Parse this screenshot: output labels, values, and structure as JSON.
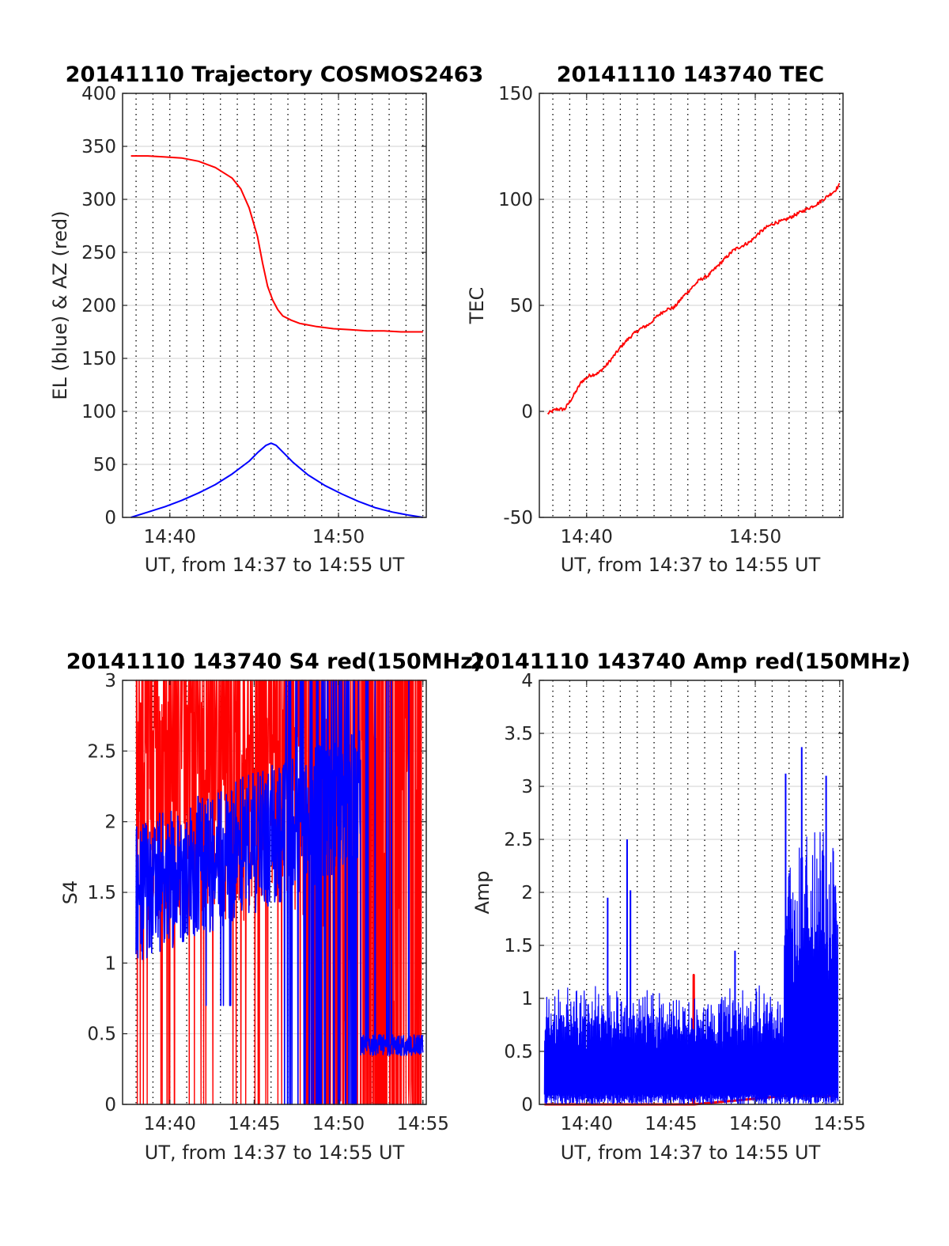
{
  "colors": {
    "el": "#0000ff",
    "az": "#ff0000",
    "tec": "#ff0000",
    "red_channel": "#ff0000",
    "blue_channel": "#0000ff",
    "grid": "#000000",
    "axes": "#262626"
  },
  "chart_data": [
    {
      "type": "line",
      "title": "20141110 Trajectory COSMOS2463",
      "xlabel": "UT, from 14:37 to 14:55 UT",
      "ylabel": "EL (blue) & AZ (red)",
      "xlim": [
        14.62,
        14.92
      ],
      "ylim": [
        0,
        400
      ],
      "xticks": [
        {
          "v": 14.6667,
          "label": "14:40"
        },
        {
          "v": 14.8333,
          "label": "14:50"
        }
      ],
      "yticks": [
        {
          "v": 0,
          "label": "0"
        },
        {
          "v": 50,
          "label": "50"
        },
        {
          "v": 100,
          "label": "100"
        },
        {
          "v": 150,
          "label": "150"
        },
        {
          "v": 200,
          "label": "200"
        },
        {
          "v": 250,
          "label": "250"
        },
        {
          "v": 300,
          "label": "300"
        },
        {
          "v": 350,
          "label": "350"
        },
        {
          "v": 400,
          "label": "400"
        }
      ],
      "grid": "vertical dotted every 1 minute, horizontal solid at y ticks",
      "series": [
        {
          "role": "EL",
          "color": "#0000ff",
          "x": [
            14.6283,
            14.645,
            14.6617,
            14.6783,
            14.695,
            14.7117,
            14.7283,
            14.745,
            14.7533,
            14.7617,
            14.7667,
            14.7717,
            14.78,
            14.7883,
            14.8033,
            14.82,
            14.8367,
            14.8533,
            14.87,
            14.8867,
            14.9033,
            14.9167
          ],
          "y": [
            0,
            5,
            10,
            16,
            23,
            31,
            41,
            53,
            61,
            68,
            70,
            68,
            60,
            52,
            40,
            30,
            22,
            15,
            9,
            5,
            2,
            0
          ]
        },
        {
          "role": "AZ",
          "color": "#ff0000",
          "x": [
            14.6283,
            14.645,
            14.6617,
            14.6783,
            14.695,
            14.7117,
            14.7283,
            14.7367,
            14.745,
            14.7533,
            14.7583,
            14.7633,
            14.7683,
            14.7733,
            14.7783,
            14.7867,
            14.795,
            14.8117,
            14.8283,
            14.845,
            14.8617,
            14.8783,
            14.895,
            14.9167
          ],
          "y": [
            341,
            341,
            340,
            339,
            336,
            330,
            320,
            310,
            292,
            265,
            240,
            218,
            205,
            196,
            190,
            186,
            183,
            180,
            178,
            177,
            176,
            176,
            175,
            175
          ]
        }
      ]
    },
    {
      "type": "line",
      "title": "20141110 143740 TEC",
      "xlabel": "UT, from 14:37 to 14:55 UT",
      "ylabel": "TEC",
      "xlim": [
        14.62,
        14.92
      ],
      "ylim": [
        -50,
        150
      ],
      "xticks": [
        {
          "v": 14.6667,
          "label": "14:40"
        },
        {
          "v": 14.8333,
          "label": "14:50"
        }
      ],
      "yticks": [
        {
          "v": -50,
          "label": "-50"
        },
        {
          "v": 0,
          "label": "0"
        },
        {
          "v": 50,
          "label": "50"
        },
        {
          "v": 100,
          "label": "100"
        },
        {
          "v": 150,
          "label": "150"
        }
      ],
      "grid": "vertical dotted every 1 minute, horizontal solid at y ticks",
      "series": [
        {
          "color": "#ff0000",
          "x": [
            14.6283,
            14.6367,
            14.645,
            14.6533,
            14.6617,
            14.67,
            14.6783,
            14.6867,
            14.695,
            14.7033,
            14.7117,
            14.72,
            14.7283,
            14.7367,
            14.745,
            14.7533,
            14.7617,
            14.77,
            14.7783,
            14.7867,
            14.795,
            14.8033,
            14.8117,
            14.82,
            14.8283,
            14.8367,
            14.845,
            14.8533,
            14.8617,
            14.87,
            14.8783,
            14.8867,
            14.895,
            14.9033,
            14.9117,
            14.9167
          ],
          "y": [
            -1,
            1,
            1,
            7,
            14,
            17,
            18,
            22,
            27,
            32,
            36,
            39,
            41,
            45,
            48,
            49,
            54,
            58,
            62,
            64,
            68,
            72,
            76,
            78,
            80,
            84,
            87,
            89,
            90,
            92,
            94,
            96,
            98,
            101,
            104,
            107
          ]
        }
      ]
    },
    {
      "type": "line",
      "title": "20141110 143740 S4 red(150MHz)",
      "xlabel": "UT, from 14:37 to 14:55 UT",
      "ylabel": "S4",
      "xlim": [
        14.62,
        14.92
      ],
      "ylim": [
        0,
        3
      ],
      "xticks": [
        {
          "v": 14.6667,
          "label": "14:40"
        },
        {
          "v": 14.75,
          "label": "14:45"
        },
        {
          "v": 14.8333,
          "label": "14:50"
        },
        {
          "v": 14.9167,
          "label": "14:55"
        }
      ],
      "yticks": [
        {
          "v": 0,
          "label": "0"
        },
        {
          "v": 0.5,
          "label": "0.5"
        },
        {
          "v": 1,
          "label": "1"
        },
        {
          "v": 1.5,
          "label": "1.5"
        },
        {
          "v": 2,
          "label": "2"
        },
        {
          "v": 2.5,
          "label": "2.5"
        },
        {
          "v": 3,
          "label": "3"
        }
      ],
      "grid": "vertical dotted every 1 minute, horizontal solid at y ticks",
      "series": [
        {
          "role": "red channel",
          "color": "#ff0000",
          "style": "noisy, frequently saturating at 3 and dropping to 0, densest after 14:48",
          "x_range": [
            14.6333,
            14.9167
          ],
          "y_range": [
            0,
            3
          ]
        },
        {
          "role": "blue channel",
          "color": "#0000ff",
          "style": "noisy between about 1 and 3 until 14:51, then about 0.4 to 0.5 with spikes",
          "x_range": [
            14.6333,
            14.9167
          ],
          "y_range": [
            0,
            3
          ]
        }
      ]
    },
    {
      "type": "line",
      "title": "20141110 143740 Amp red(150MHz)",
      "xlabel": "UT, from 14:37 to 14:55 UT",
      "ylabel": "Amp",
      "xlim": [
        14.62,
        14.92
      ],
      "ylim": [
        0,
        4
      ],
      "xticks": [
        {
          "v": 14.6667,
          "label": "14:40"
        },
        {
          "v": 14.75,
          "label": "14:45"
        },
        {
          "v": 14.8333,
          "label": "14:50"
        },
        {
          "v": 14.9167,
          "label": "14:55"
        }
      ],
      "yticks": [
        {
          "v": 0,
          "label": "0"
        },
        {
          "v": 0.5,
          "label": "0.5"
        },
        {
          "v": 1,
          "label": "1"
        },
        {
          "v": 1.5,
          "label": "1.5"
        },
        {
          "v": 2,
          "label": "2"
        },
        {
          "v": 2.5,
          "label": "2.5"
        },
        {
          "v": 3,
          "label": "3"
        },
        {
          "v": 3.5,
          "label": "3.5"
        },
        {
          "v": 4,
          "label": "4"
        }
      ],
      "grid": "vertical dotted every 1 minute, horizontal solid at y ticks",
      "series": [
        {
          "role": "red channel",
          "color": "#ff0000",
          "style": "mostly near 0, spike to about 1.2 near 14:46, about 0.08 after 14:52",
          "x": [
            14.625,
            14.772,
            14.7725,
            14.773,
            14.862,
            14.915
          ],
          "y": [
            0,
            0,
            1.22,
            0,
            0.08,
            0.08
          ]
        },
        {
          "role": "blue channel",
          "color": "#0000ff",
          "style": "dense noise from 0 up to about 1.2 until 14:52, then up to about 3.4",
          "spikes": [
            {
              "x": 14.6875,
              "y": 1.95
            },
            {
              "x": 14.7067,
              "y": 2.5
            },
            {
              "x": 14.71,
              "y": 2.02
            },
            {
              "x": 14.8133,
              "y": 1.45
            },
            {
              "x": 14.8633,
              "y": 3.12
            },
            {
              "x": 14.8792,
              "y": 3.37
            },
            {
              "x": 14.9033,
              "y": 3.1
            }
          ]
        }
      ]
    }
  ]
}
